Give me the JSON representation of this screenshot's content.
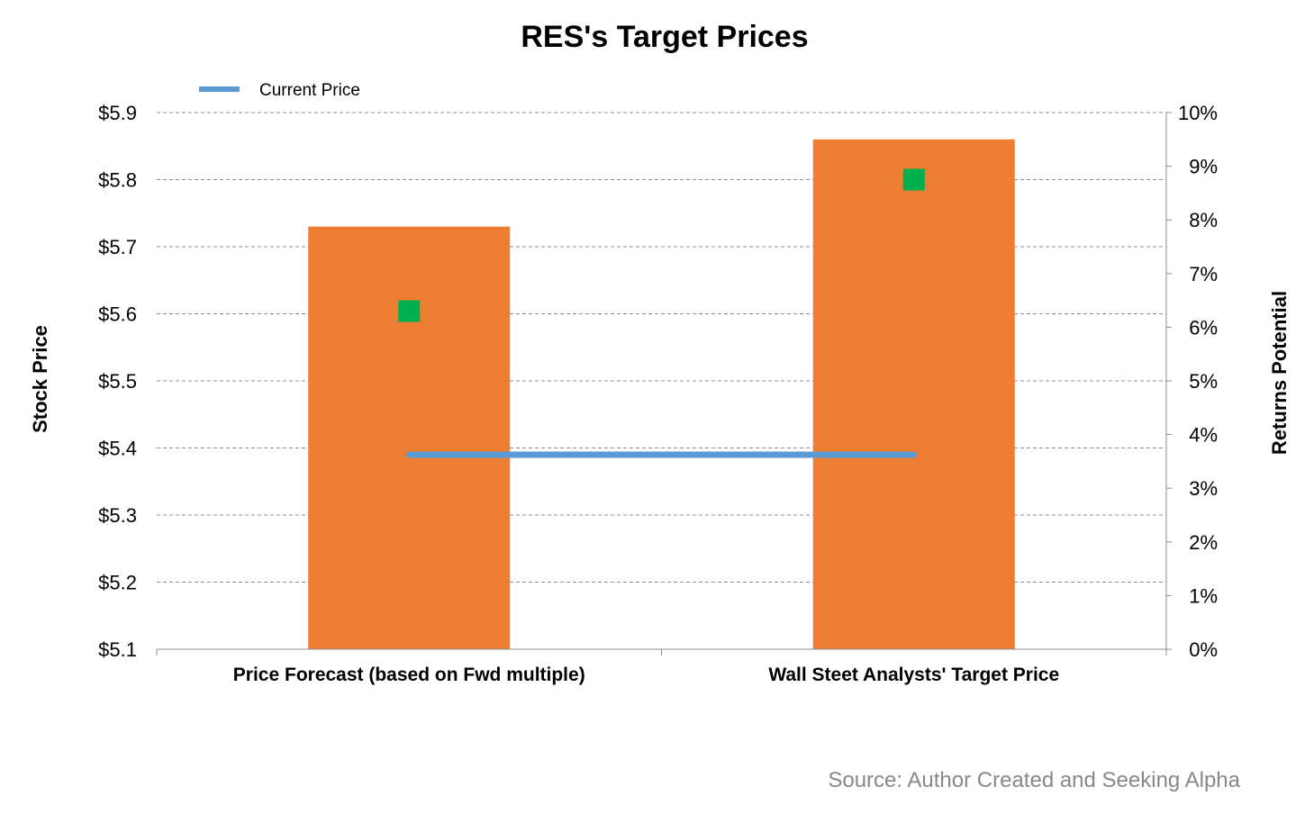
{
  "chart_data": {
    "type": "bar",
    "title": "RES's Target Prices",
    "categories": [
      "Price Forecast (based on Fwd multiple)",
      "Wall Steet Analysts' Target Price"
    ],
    "series": [
      {
        "name": "",
        "kind": "bar",
        "axis": "left",
        "values": [
          5.73,
          5.86
        ],
        "color": "#ED7D31"
      },
      {
        "name": "Current Price",
        "kind": "line",
        "axis": "left",
        "values": [
          5.39,
          5.39
        ],
        "color": "#5B9BD5"
      },
      {
        "name": "",
        "kind": "marker",
        "axis": "right",
        "values": [
          0.063,
          0.0875
        ],
        "color": "#00B050"
      }
    ],
    "ylabel": "Stock Price",
    "y2label": "Returns Potential",
    "ylim": [
      5.1,
      5.9
    ],
    "y2lim": [
      0,
      0.1
    ],
    "yticks": [
      "$5.9",
      "$5.8",
      "$5.7",
      "$5.6",
      "$5.5",
      "$5.4",
      "$5.3",
      "$5.2",
      "$5.1"
    ],
    "y2ticks": [
      "10%",
      "9%",
      "8%",
      "7%",
      "6%",
      "5%",
      "4%",
      "3%",
      "2%",
      "1%",
      "0%"
    ],
    "grid": true,
    "legend": "top-left",
    "source": "Source: Author Created and Seeking Alpha"
  }
}
